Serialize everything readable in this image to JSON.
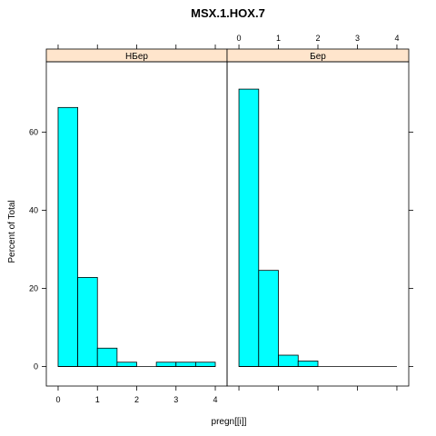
{
  "chart_data": {
    "type": "bar",
    "title": "MSX.1.HOX.7",
    "xlabel": "pregn[[i]]",
    "ylabel": "Percent of Total",
    "xlim": [
      -0.3,
      4.3
    ],
    "ylim": [
      -5,
      78
    ],
    "xticks": [
      0,
      1,
      2,
      3,
      4
    ],
    "yticks": [
      0,
      20,
      40,
      60
    ],
    "bin_width": 0.5,
    "colors": {
      "fill": "#00ffff",
      "stroke": "#000000",
      "strip": "#ffe5cc"
    },
    "panels": [
      {
        "name": "НБер",
        "bins": [
          {
            "x0": 0.0,
            "x1": 0.5,
            "value": 66.3
          },
          {
            "x0": 0.5,
            "x1": 1.0,
            "value": 22.8
          },
          {
            "x0": 1.0,
            "x1": 1.5,
            "value": 4.7
          },
          {
            "x0": 1.5,
            "x1": 2.0,
            "value": 1.1
          },
          {
            "x0": 2.0,
            "x1": 2.5,
            "value": 0.0
          },
          {
            "x0": 2.5,
            "x1": 3.0,
            "value": 1.1
          },
          {
            "x0": 3.0,
            "x1": 3.5,
            "value": 1.1
          },
          {
            "x0": 3.5,
            "x1": 4.0,
            "value": 1.1
          }
        ]
      },
      {
        "name": "Бер",
        "bins": [
          {
            "x0": 0.0,
            "x1": 0.5,
            "value": 71.0
          },
          {
            "x0": 0.5,
            "x1": 1.0,
            "value": 24.6
          },
          {
            "x0": 1.0,
            "x1": 1.5,
            "value": 2.9
          },
          {
            "x0": 1.5,
            "x1": 2.0,
            "value": 1.4
          },
          {
            "x0": 2.0,
            "x1": 2.5,
            "value": 0.0
          },
          {
            "x0": 2.5,
            "x1": 3.0,
            "value": 0.0
          },
          {
            "x0": 3.0,
            "x1": 3.5,
            "value": 0.0
          },
          {
            "x0": 3.5,
            "x1": 4.0,
            "value": 0.0
          }
        ]
      }
    ]
  }
}
